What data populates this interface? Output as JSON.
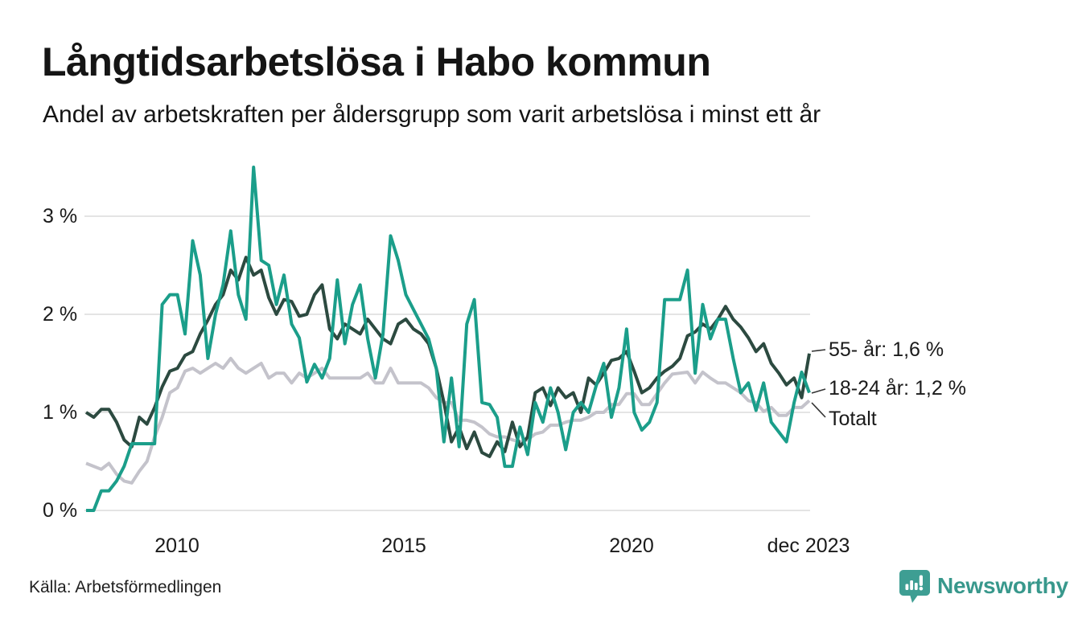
{
  "header": {
    "title": "Långtidsarbetslösa i Habo kommun",
    "subtitle": "Andel av arbetskraften per åldersgrupp som varit arbetslösa i minst ett år"
  },
  "footer": {
    "source": "Källa: Arbetsförmedlingen",
    "brand_name": "Newsworthy",
    "brand_icon": "newsworthy-chart-bubble-icon",
    "brand_color": "#38988c"
  },
  "chart_data": {
    "type": "line",
    "title": "Långtidsarbetslösa i Habo kommun",
    "subtitle": "Andel av arbetskraften per åldersgrupp som varit arbetslösa i minst ett år",
    "x_unit": "time",
    "x_start_year": 2008,
    "x_step_months": 2,
    "x_end": "dec 2023",
    "grid": "horizontal",
    "gridline_color": "#e4e4e4",
    "ylim": [
      0,
      3.6
    ],
    "x_ticks": [
      {
        "label": "2010",
        "year": 2010
      },
      {
        "label": "2015",
        "year": 2015
      },
      {
        "label": "2020",
        "year": 2020
      },
      {
        "label": "dec 2023",
        "year": 2023.92
      }
    ],
    "y_ticks": [
      {
        "label": "0 %",
        "value": 0
      },
      {
        "label": "1 %",
        "value": 1
      },
      {
        "label": "2 %",
        "value": 2
      },
      {
        "label": "3 %",
        "value": 3
      }
    ],
    "series": [
      {
        "name": "55- år",
        "annotation": "55- år: 1,6 %",
        "latest_value": 1.6,
        "color": "#2c4a40",
        "values": [
          1.0,
          0.95,
          1.03,
          1.03,
          0.9,
          0.72,
          0.65,
          0.95,
          0.88,
          1.05,
          1.26,
          1.42,
          1.45,
          1.58,
          1.62,
          1.8,
          1.94,
          2.1,
          2.2,
          2.45,
          2.35,
          2.58,
          2.4,
          2.45,
          2.17,
          2.0,
          2.15,
          2.13,
          1.98,
          2.0,
          2.2,
          2.3,
          1.85,
          1.75,
          1.9,
          1.85,
          1.8,
          1.95,
          1.85,
          1.75,
          1.7,
          1.9,
          1.95,
          1.85,
          1.8,
          1.7,
          1.45,
          1.1,
          0.7,
          0.85,
          0.63,
          0.8,
          0.59,
          0.55,
          0.7,
          0.6,
          0.9,
          0.65,
          0.75,
          1.2,
          1.25,
          1.07,
          1.25,
          1.15,
          1.2,
          1.0,
          1.35,
          1.28,
          1.4,
          1.53,
          1.55,
          1.62,
          1.42,
          1.2,
          1.25,
          1.35,
          1.42,
          1.47,
          1.55,
          1.78,
          1.82,
          1.9,
          1.85,
          1.95,
          2.08,
          1.95,
          1.87,
          1.76,
          1.62,
          1.7,
          1.5,
          1.4,
          1.28,
          1.35,
          1.15,
          1.6
        ]
      },
      {
        "name": "18-24 år",
        "annotation": "18-24 år: 1,2 %",
        "latest_value": 1.2,
        "color": "#1b9e8a",
        "values": [
          0.0,
          0.0,
          0.2,
          0.2,
          0.3,
          0.45,
          0.68,
          0.68,
          0.68,
          0.68,
          2.1,
          2.2,
          2.2,
          1.8,
          2.75,
          2.4,
          1.55,
          2.0,
          2.3,
          2.85,
          2.2,
          1.95,
          3.5,
          2.55,
          2.5,
          2.1,
          2.4,
          1.9,
          1.76,
          1.31,
          1.49,
          1.35,
          1.55,
          2.35,
          1.7,
          2.1,
          2.3,
          1.75,
          1.35,
          1.8,
          2.8,
          2.55,
          2.2,
          2.05,
          1.9,
          1.75,
          1.45,
          0.7,
          1.35,
          0.65,
          1.9,
          2.15,
          1.1,
          1.08,
          0.95,
          0.45,
          0.45,
          0.85,
          0.57,
          1.1,
          0.9,
          1.25,
          1.0,
          0.62,
          1.0,
          1.1,
          1.0,
          1.27,
          1.5,
          0.95,
          1.25,
          1.85,
          1.0,
          0.82,
          0.9,
          1.1,
          2.15,
          2.15,
          2.15,
          2.45,
          1.4,
          2.1,
          1.75,
          1.95,
          1.95,
          1.55,
          1.2,
          1.3,
          1.02,
          1.3,
          0.9,
          0.8,
          0.7,
          1.1,
          1.41,
          1.2
        ]
      },
      {
        "name": "Totalt",
        "annotation": "Totalt",
        "latest_value": 1.1,
        "color": "#c4c3cb",
        "values": [
          0.48,
          0.45,
          0.42,
          0.48,
          0.37,
          0.3,
          0.28,
          0.4,
          0.5,
          0.75,
          0.95,
          1.2,
          1.25,
          1.42,
          1.45,
          1.4,
          1.45,
          1.5,
          1.45,
          1.55,
          1.45,
          1.4,
          1.45,
          1.5,
          1.35,
          1.4,
          1.4,
          1.3,
          1.4,
          1.35,
          1.4,
          1.45,
          1.35,
          1.35,
          1.35,
          1.35,
          1.35,
          1.4,
          1.3,
          1.3,
          1.45,
          1.3,
          1.3,
          1.3,
          1.3,
          1.25,
          1.15,
          1.1,
          1.1,
          0.92,
          0.92,
          0.9,
          0.85,
          0.78,
          0.75,
          0.75,
          0.72,
          0.7,
          0.72,
          0.78,
          0.8,
          0.87,
          0.87,
          0.9,
          0.92,
          0.92,
          0.95,
          1.0,
          1.0,
          1.08,
          1.08,
          1.19,
          1.19,
          1.08,
          1.08,
          1.19,
          1.3,
          1.39,
          1.4,
          1.41,
          1.3,
          1.41,
          1.35,
          1.3,
          1.3,
          1.25,
          1.2,
          1.12,
          1.1,
          1.01,
          1.05,
          0.97,
          0.97,
          1.05,
          1.05,
          1.12
        ]
      }
    ]
  }
}
